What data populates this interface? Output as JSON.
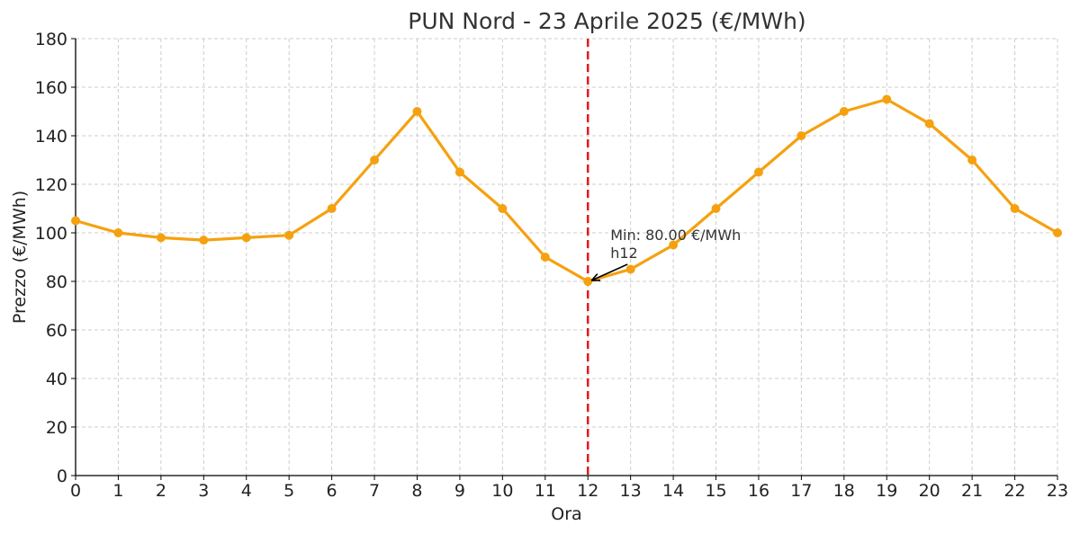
{
  "chart_data": {
    "type": "line",
    "title": "PUN Nord - 23 Aprile 2025 (€/MWh)",
    "xlabel": "Ora",
    "ylabel": "Prezzo (€/MWh)",
    "x": [
      0,
      1,
      2,
      3,
      4,
      5,
      6,
      7,
      8,
      9,
      10,
      11,
      12,
      13,
      14,
      15,
      16,
      17,
      18,
      19,
      20,
      21,
      22,
      23
    ],
    "series": [
      {
        "values": [
          105,
          100,
          98,
          97,
          98,
          99,
          110,
          130,
          150,
          125,
          110,
          90,
          80,
          85,
          95,
          110,
          125,
          140,
          150,
          155,
          145,
          130,
          110,
          100
        ],
        "color": "#f5a10f"
      }
    ],
    "xlim": [
      0,
      23
    ],
    "ylim": [
      0,
      180
    ],
    "x_ticks": [
      0,
      1,
      2,
      3,
      4,
      5,
      6,
      7,
      8,
      9,
      10,
      11,
      12,
      13,
      14,
      15,
      16,
      17,
      18,
      19,
      20,
      21,
      22,
      23
    ],
    "y_ticks": [
      0,
      20,
      40,
      60,
      80,
      100,
      120,
      140,
      160,
      180
    ],
    "grid": true,
    "vline": {
      "x": 12,
      "color": "#e31a1c",
      "style": "dashed"
    },
    "annotation": {
      "x": 12,
      "y": 80,
      "line1": "Min: 80.00 €/MWh",
      "line2": "h12"
    }
  }
}
